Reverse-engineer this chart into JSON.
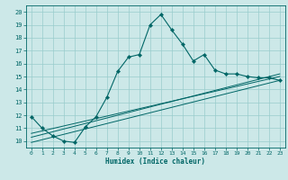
{
  "xlabel": "Humidex (Indice chaleur)",
  "xlim": [
    -0.5,
    23.5
  ],
  "ylim": [
    9.5,
    20.5
  ],
  "xticks": [
    0,
    1,
    2,
    3,
    4,
    5,
    6,
    7,
    8,
    9,
    10,
    11,
    12,
    13,
    14,
    15,
    16,
    17,
    18,
    19,
    20,
    21,
    22,
    23
  ],
  "yticks": [
    10,
    11,
    12,
    13,
    14,
    15,
    16,
    17,
    18,
    19,
    20
  ],
  "bg_color": "#cce8e8",
  "grid_color": "#99cccc",
  "line_color": "#006666",
  "line1_x": [
    0,
    1,
    2,
    3,
    4,
    5,
    6,
    7,
    8,
    9,
    10,
    11,
    12,
    13,
    14,
    15,
    16,
    17,
    18,
    19,
    20,
    21,
    22,
    23
  ],
  "line1_y": [
    11.9,
    11.0,
    10.4,
    10.0,
    9.9,
    11.1,
    11.9,
    13.4,
    15.4,
    16.5,
    16.7,
    19.0,
    19.8,
    18.6,
    17.5,
    16.2,
    16.7,
    15.5,
    15.2,
    15.2,
    15.0,
    14.9,
    14.9,
    14.7
  ],
  "line2_x": [
    0,
    23
  ],
  "line2_y": [
    10.6,
    15.0
  ],
  "line3_x": [
    0,
    23
  ],
  "line3_y": [
    10.3,
    15.2
  ],
  "line4_x": [
    0,
    23
  ],
  "line4_y": [
    9.9,
    14.7
  ]
}
